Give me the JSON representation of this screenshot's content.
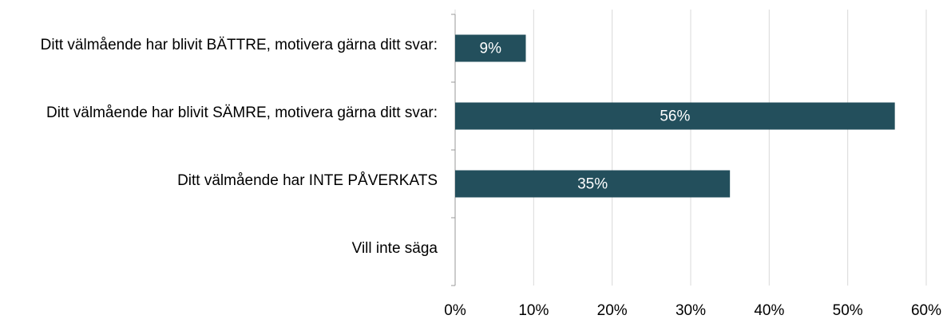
{
  "chart_data": {
    "type": "barh",
    "categories": [
      "Ditt välmående har blivit BÄTTRE, motivera gärna ditt svar:",
      "Ditt välmående har blivit SÄMRE, motivera gärna ditt svar:",
      "Ditt välmående har INTE PÅVERKATS",
      "Vill inte säga"
    ],
    "values": [
      9,
      56,
      35,
      null
    ],
    "value_labels": [
      "9%",
      "56%",
      "35%",
      null
    ],
    "color": "#234f5c",
    "xlim": [
      0,
      60
    ],
    "xticks": [
      {
        "value": 0,
        "label": "0%"
      },
      {
        "value": 10,
        "label": "10%"
      },
      {
        "value": 20,
        "label": "20%"
      },
      {
        "value": 30,
        "label": "30%"
      },
      {
        "value": 40,
        "label": "40%"
      },
      {
        "value": 50,
        "label": "50%"
      },
      {
        "value": 60,
        "label": "60%"
      }
    ],
    "grid": true
  }
}
